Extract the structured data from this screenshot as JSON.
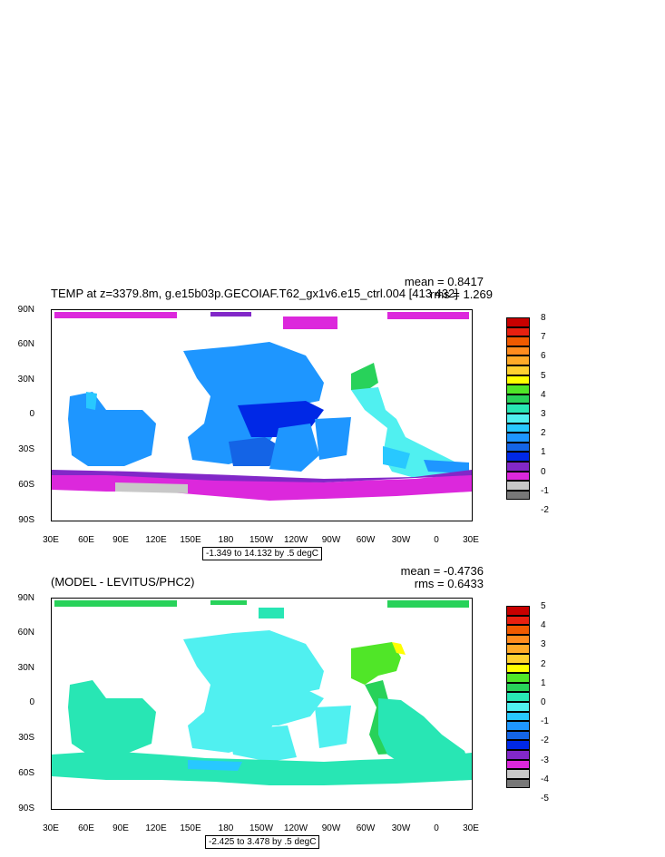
{
  "panels": [
    {
      "title": "TEMP at z=3379.8m, g.e15b03p.GECOIAF.T62_gx1v6.e15_ctrl.004 [413 432]",
      "mean": "mean = 0.8417",
      "rms": "rms = 1.269",
      "lat_labels": [
        "90N",
        "60N",
        "30N",
        "0",
        "30S",
        "60S",
        "90S"
      ],
      "lon_labels": [
        "30E",
        "60E",
        "90E",
        "120E",
        "150E",
        "180",
        "150W",
        "120W",
        "90W",
        "60W",
        "30W",
        "0",
        "30E"
      ],
      "range_text": "-1.349 to 14.132 by .5 degC",
      "colorbar_labels": [
        "8",
        "7",
        "6",
        "5",
        "4",
        "3",
        "2",
        "1",
        "0",
        "-1",
        "-2"
      ],
      "colorbar_colors": [
        "#c80000",
        "#e82010",
        "#f05a00",
        "#ff8c1e",
        "#ffaa28",
        "#ffd030",
        "#ffff00",
        "#50e628",
        "#28d25a",
        "#28e6b4",
        "#50f0f0",
        "#28c8ff",
        "#1e96ff",
        "#1464e6",
        "#0028e6",
        "#8228c8",
        "#dc28dc",
        "#c8c8c8",
        "#787878"
      ]
    },
    {
      "title": "(MODEL - LEVITUS/PHC2)",
      "mean": "mean = -0.4736",
      "rms": "rms = 0.6433",
      "lat_labels": [
        "90N",
        "60N",
        "30N",
        "0",
        "30S",
        "60S",
        "90S"
      ],
      "lon_labels": [
        "30E",
        "60E",
        "90E",
        "120E",
        "150E",
        "180",
        "150W",
        "120W",
        "90W",
        "60W",
        "30W",
        "0",
        "30E"
      ],
      "range_text": "-2.425 to 3.478 by .5 degC",
      "colorbar_labels": [
        "5",
        "4",
        "3",
        "2",
        "1",
        "0",
        "-1",
        "-2",
        "-3",
        "-4",
        "-5"
      ],
      "colorbar_colors": [
        "#c80000",
        "#e82010",
        "#f05a00",
        "#ff8c1e",
        "#ffaa28",
        "#ffd030",
        "#ffff00",
        "#50e628",
        "#28d25a",
        "#28e6b4",
        "#50f0f0",
        "#28c8ff",
        "#1e96ff",
        "#1464e6",
        "#0028e6",
        "#8228c8",
        "#dc28dc",
        "#c8c8c8",
        "#787878"
      ]
    }
  ]
}
